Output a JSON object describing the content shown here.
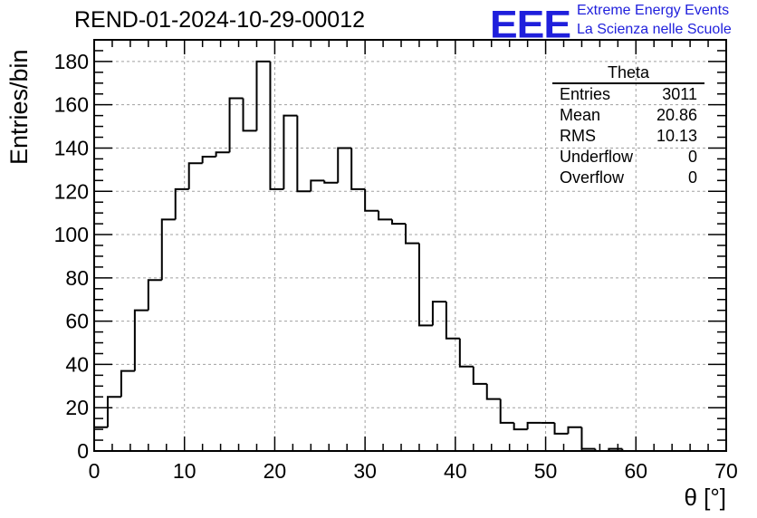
{
  "title": "REND-01-2024-10-29-00012",
  "logo": {
    "mark": "EEE",
    "line1": "Extreme Energy Events",
    "line2": "La Scienza nelle Scuole",
    "color": "#1f1fdc"
  },
  "stats_box": {
    "title": "Theta",
    "rows": [
      {
        "label": "Entries",
        "value": "3011"
      },
      {
        "label": "Mean",
        "value": "20.86"
      },
      {
        "label": "RMS",
        "value": "10.13"
      },
      {
        "label": "Underflow",
        "value": "0"
      },
      {
        "label": "Overflow",
        "value": "0"
      }
    ]
  },
  "chart_data": {
    "type": "bar",
    "title": "REND-01-2024-10-29-00012",
    "xlabel": "θ [°]",
    "ylabel": "Entries/bin",
    "xlim": [
      0,
      70
    ],
    "ylim": [
      0,
      190
    ],
    "grid": true,
    "histogram": true,
    "bin_width": 1.5,
    "x_ticks": [
      0,
      10,
      20,
      30,
      40,
      50,
      60,
      70
    ],
    "y_ticks": [
      0,
      20,
      40,
      60,
      80,
      100,
      120,
      140,
      160,
      180
    ],
    "bin_edges": [
      0,
      1.5,
      3,
      4.5,
      6,
      7.5,
      9,
      10.5,
      12,
      13.5,
      15,
      16.5,
      18,
      19.5,
      21,
      22.5,
      24,
      25.5,
      27,
      28.5,
      30,
      31.5,
      33,
      34.5,
      36,
      37.5,
      39,
      40.5,
      42,
      43.5,
      45,
      46.5,
      48,
      49.5,
      51,
      52.5,
      54,
      55.5,
      57,
      58.5,
      60,
      61.5,
      63,
      64.5,
      66,
      67.5,
      69
    ],
    "values": [
      11,
      25,
      37,
      65,
      79,
      107,
      121,
      133,
      136,
      138,
      163,
      148,
      180,
      121,
      155,
      120,
      125,
      124,
      140,
      121,
      111,
      107,
      105,
      96,
      58,
      69,
      52,
      39,
      31,
      24,
      13,
      10,
      13,
      13,
      8,
      11,
      1,
      0,
      1,
      0,
      0,
      0,
      0,
      0,
      0,
      0
    ],
    "line_color": "#000000",
    "grid_color": "#a0a0a0"
  }
}
